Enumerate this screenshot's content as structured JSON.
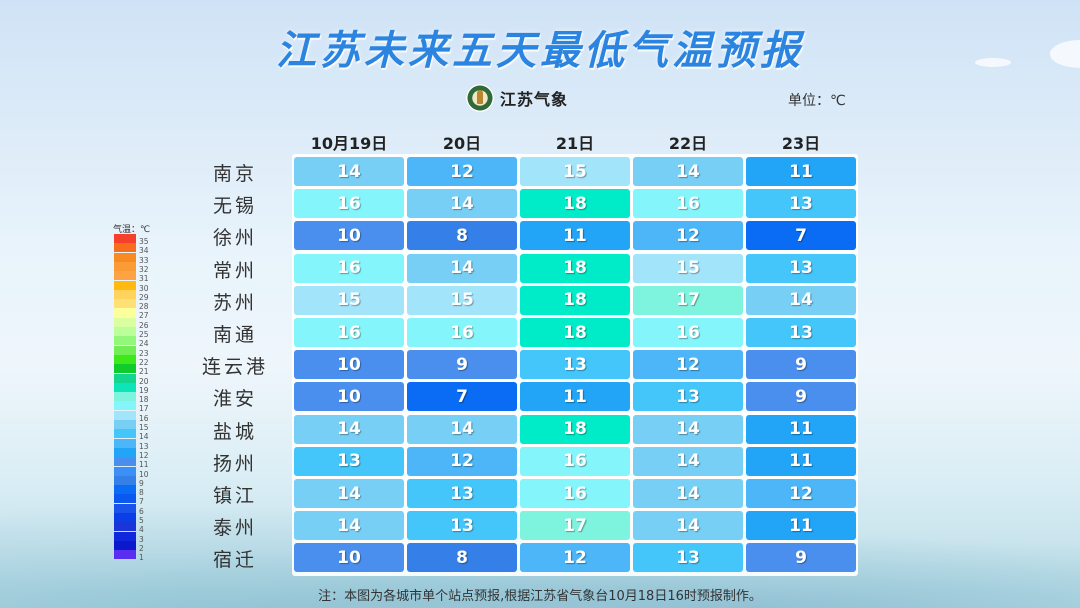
{
  "title": "江苏未来五天最低气温预报",
  "logo": {
    "icon": "jiangsu-meteorology-emblem-icon",
    "text": "江苏气象"
  },
  "unit_label": "单位：℃",
  "note": "注：本图为各城市单个站点预报,根据江苏省气象台10月18日16时预报制作。",
  "legend": {
    "title": "气温：℃",
    "entries": [
      {
        "value": 35,
        "color": "#f5412b"
      },
      {
        "value": 34,
        "color": "#f76d1c"
      },
      {
        "value": 33,
        "color": "#f88a22"
      },
      {
        "value": 32,
        "color": "#fa9b35"
      },
      {
        "value": 31,
        "color": "#fda344"
      },
      {
        "value": 30,
        "color": "#ffb90f"
      },
      {
        "value": 29,
        "color": "#ffd35c"
      },
      {
        "value": 28,
        "color": "#ffe074"
      },
      {
        "value": 27,
        "color": "#fbff9c"
      },
      {
        "value": 26,
        "color": "#d9ffa0"
      },
      {
        "value": 25,
        "color": "#bbff9a"
      },
      {
        "value": 24,
        "color": "#93f77a"
      },
      {
        "value": 23,
        "color": "#72ee55"
      },
      {
        "value": 22,
        "color": "#3de81b"
      },
      {
        "value": 21,
        "color": "#0fcc2c"
      },
      {
        "value": 20,
        "color": "#12d68d"
      },
      {
        "value": 19,
        "color": "#0ce5b7"
      },
      {
        "value": 18,
        "color": "#7ef3de"
      },
      {
        "value": 17,
        "color": "#84f5fa"
      },
      {
        "value": 16,
        "color": "#a2e4fa"
      },
      {
        "value": 15,
        "color": "#77cff6"
      },
      {
        "value": 14,
        "color": "#44c6fb"
      },
      {
        "value": 13,
        "color": "#4db6f8"
      },
      {
        "value": 12,
        "color": "#22a4f7"
      },
      {
        "value": 11,
        "color": "#4a8fee"
      },
      {
        "value": 10,
        "color": "#3c8ff6"
      },
      {
        "value": 9,
        "color": "#3480e8"
      },
      {
        "value": 8,
        "color": "#0a6cf5"
      },
      {
        "value": 7,
        "color": "#0a58f0"
      },
      {
        "value": 6,
        "color": "#1a52ec"
      },
      {
        "value": 5,
        "color": "#0a3ee6"
      },
      {
        "value": 4,
        "color": "#1a36d8"
      },
      {
        "value": 3,
        "color": "#1028dc"
      },
      {
        "value": 2,
        "color": "#0c18cc"
      },
      {
        "value": 1,
        "color": "#5a2ef0"
      }
    ]
  },
  "cell_colors": {
    "7": "#0a6cf5",
    "8": "#3480e8",
    "9": "#4a8fee",
    "10": "#4a8fee",
    "11": "#22a4f7",
    "12": "#4db6f8",
    "13": "#44c6fb",
    "14": "#77cff6",
    "15": "#a2e4fa",
    "16": "#84f5fa",
    "17": "#7ef3de",
    "18": "#00ecc8"
  },
  "chart_data": {
    "type": "table",
    "title": "江苏未来五天最低气温预报",
    "unit": "℃",
    "columns": [
      "10月19日",
      "20日",
      "21日",
      "22日",
      "23日"
    ],
    "rows": [
      {
        "city": "南京",
        "values": [
          14,
          12,
          15,
          14,
          11
        ]
      },
      {
        "city": "无锡",
        "values": [
          16,
          14,
          18,
          16,
          13
        ]
      },
      {
        "city": "徐州",
        "values": [
          10,
          8,
          11,
          12,
          7
        ]
      },
      {
        "city": "常州",
        "values": [
          16,
          14,
          18,
          15,
          13
        ]
      },
      {
        "city": "苏州",
        "values": [
          15,
          15,
          18,
          17,
          14
        ]
      },
      {
        "city": "南通",
        "values": [
          16,
          16,
          18,
          16,
          13
        ]
      },
      {
        "city": "连云港",
        "values": [
          10,
          9,
          13,
          12,
          9
        ]
      },
      {
        "city": "淮安",
        "values": [
          10,
          7,
          11,
          13,
          9
        ]
      },
      {
        "city": "盐城",
        "values": [
          14,
          14,
          18,
          14,
          11
        ]
      },
      {
        "city": "扬州",
        "values": [
          13,
          12,
          16,
          14,
          11
        ]
      },
      {
        "city": "镇江",
        "values": [
          14,
          13,
          16,
          14,
          12
        ]
      },
      {
        "city": "泰州",
        "values": [
          14,
          13,
          17,
          14,
          11
        ]
      },
      {
        "city": "宿迁",
        "values": [
          10,
          8,
          12,
          13,
          9
        ]
      }
    ]
  }
}
